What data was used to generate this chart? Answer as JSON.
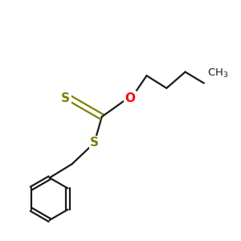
{
  "background_color": "#ffffff",
  "bond_color": "#1a1a1a",
  "S_color": "#808000",
  "O_color": "#ff0000",
  "C_color": "#1a1a1a",
  "line_width": 1.6,
  "figsize": [
    3.0,
    3.0
  ],
  "dpi": 100,
  "S1_label": "S",
  "S2_label": "S",
  "O_label": "O",
  "CH3_label": "CH$_3$"
}
